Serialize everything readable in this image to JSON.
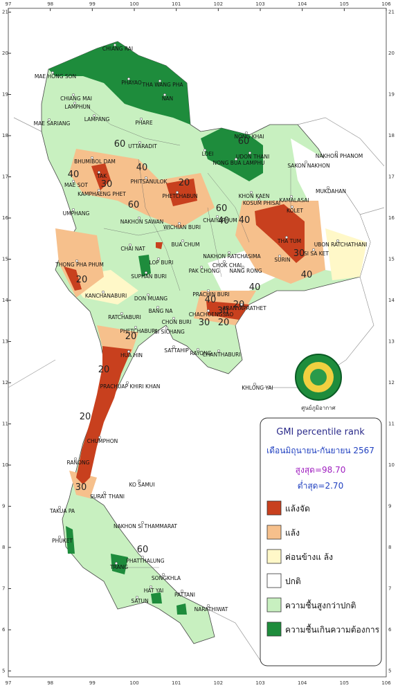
{
  "map": {
    "longitudes": [
      97,
      98,
      99,
      100,
      101,
      102,
      103,
      104,
      105,
      106
    ],
    "latitudes": [
      21,
      20,
      19,
      18,
      17,
      16,
      15,
      14,
      13,
      12,
      11,
      10,
      9,
      8,
      7,
      6,
      5
    ],
    "cities": [
      "CHIANG RAI",
      "MAE HONG SON",
      "PHAYAO",
      "THA WANG PHA",
      "NAN",
      "CHIANG MAI",
      "LAMPHUN",
      "LAMPANG",
      "PHARE",
      "MAE SARIANG",
      "UTTARADIT",
      "NONG KHAI",
      "LOEI",
      "UDON THANI",
      "NONG BUA LAMPHU",
      "SAKON NAKHON",
      "NAKHON PHANOM",
      "BHUMIBOL DAM",
      "TAK",
      "MAE SOT",
      "PHITSANULOK",
      "MUKDAHAN",
      "KAMPHAENG PHET",
      "PHETCHABUN",
      "KHON KAEN",
      "KOSUM PHISAI",
      "KAMALASAI",
      "KOLET",
      "UMPHANG",
      "NAKHON SAWAN",
      "WICHIAN BURI",
      "CHAIYAPHUM",
      "THA TUM",
      "UBON RATCHATHANI",
      "BUA CHUM",
      "CHAI NAT",
      "SURIN",
      "SI SA KET",
      "LOP BURI",
      "NAKHON RATCHASIMA",
      "CHOK CHAI",
      "THONG PHA PHUM",
      "NANG RONG",
      "SUPHAN BURI",
      "PAK CHONG",
      "KANCHANABURI",
      "PRACHIN BURI",
      "DON MUANG",
      "ARANYAPRATHET",
      "BANG NA",
      "CHACHOENGSAO",
      "RATCHABURI",
      "CHON BURI",
      "PHETCHABURI",
      "SI SICHANG",
      "SATTAHIP",
      "RAYONG",
      "CHANTHABURI",
      "HUA HIN",
      "PRACHUAP KHIRI KHAN",
      "KHLONG YAI",
      "CHUMPHON",
      "RANONG",
      "KO SAMUI",
      "SURAT THANI",
      "TAKUA PA",
      "NAKHON SI THAMMARAT",
      "PHUKET",
      "PHATTHALUNG",
      "TRANG",
      "SONGKHLA",
      "HAT YAI",
      "PATTANI",
      "SATUN",
      "NARATHIWAT"
    ],
    "contours": [
      "20",
      "20",
      "20",
      "20",
      "20",
      "20",
      "20",
      "30",
      "30",
      "30",
      "30",
      "30",
      "40",
      "40",
      "40",
      "40",
      "40",
      "40",
      "40",
      "60",
      "60",
      "60",
      "60",
      "60"
    ],
    "logo_caption": "ศูนย์ภูมิอากาศ"
  },
  "legend": {
    "title": "GMI percentile rank",
    "period": "เดือนมิถุนายน-กันยายน 2567",
    "max": "สูงสุด=98.70",
    "min": "ต่ำสุด=2.70",
    "items": [
      "แล้งจัด",
      "แล้ง",
      "ค่อนข้างแ ล้ง",
      "ปกติ",
      "ความชื้นสูงกว่าปกติ",
      "ความชื้นเกินความต้องการ"
    ]
  }
}
